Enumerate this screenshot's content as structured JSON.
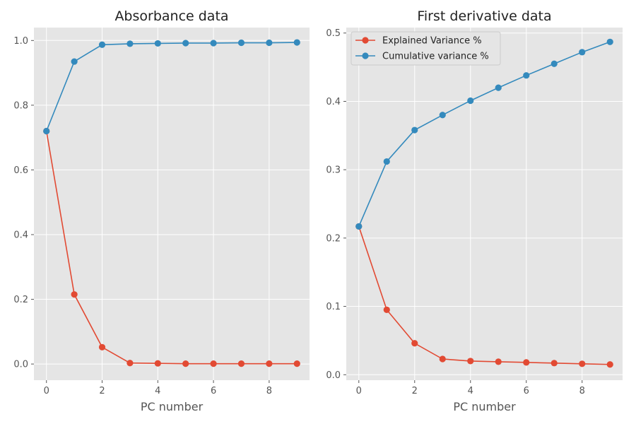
{
  "colors": {
    "explained": "#e24a33",
    "cumulative": "#348abd"
  },
  "chart_data": [
    {
      "type": "line",
      "title": "Absorbance data",
      "xlabel": "PC number",
      "ylabel": "",
      "xlim": [
        -0.45,
        9.45
      ],
      "ylim": [
        -0.05,
        1.04
      ],
      "xticks": [
        0,
        2,
        4,
        6,
        8
      ],
      "xtick_labels": [
        "0",
        "2",
        "4",
        "6",
        "8"
      ],
      "yticks": [
        0.0,
        0.2,
        0.4,
        0.6,
        0.8,
        1.0
      ],
      "ytick_labels": [
        "0.0",
        "0.2",
        "0.4",
        "0.6",
        "0.8",
        "1.0"
      ],
      "grid": true,
      "legend": null,
      "x": [
        0,
        1,
        2,
        3,
        4,
        5,
        6,
        7,
        8,
        9
      ],
      "series": [
        {
          "key": "explained",
          "values": [
            0.72,
            0.215,
            0.052,
            0.003,
            0.002,
            0.001,
            0.001,
            0.001,
            0.001,
            0.001
          ]
        },
        {
          "key": "cumulative",
          "values": [
            0.72,
            0.935,
            0.987,
            0.99,
            0.991,
            0.992,
            0.992,
            0.993,
            0.993,
            0.994
          ]
        }
      ]
    },
    {
      "type": "line",
      "title": "First derivative data",
      "xlabel": "PC number",
      "ylabel": "",
      "xlim": [
        -0.45,
        9.45
      ],
      "ylim": [
        -0.008,
        0.508
      ],
      "xticks": [
        0,
        2,
        4,
        6,
        8
      ],
      "xtick_labels": [
        "0",
        "2",
        "4",
        "6",
        "8"
      ],
      "yticks": [
        0.0,
        0.1,
        0.2,
        0.3,
        0.4,
        0.5
      ],
      "ytick_labels": [
        "0.0",
        "0.1",
        "0.2",
        "0.3",
        "0.4",
        "0.5"
      ],
      "grid": true,
      "legend": "top-left",
      "x": [
        0,
        1,
        2,
        3,
        4,
        5,
        6,
        7,
        8,
        9
      ],
      "series": [
        {
          "key": "explained",
          "name": "Explained Variance %",
          "values": [
            0.217,
            0.095,
            0.046,
            0.023,
            0.02,
            0.019,
            0.018,
            0.017,
            0.016,
            0.015
          ]
        },
        {
          "key": "cumulative",
          "name": "Cumulative variance %",
          "values": [
            0.217,
            0.312,
            0.358,
            0.38,
            0.401,
            0.42,
            0.438,
            0.455,
            0.472,
            0.487
          ]
        }
      ]
    }
  ]
}
